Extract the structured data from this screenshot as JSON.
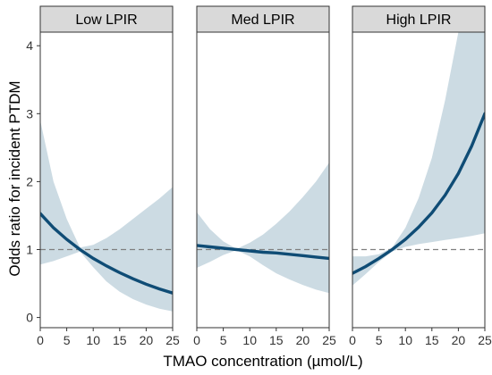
{
  "chart_data": {
    "type": "line",
    "xlabel": "TMAO concentration (µmol/L)",
    "ylabel": "Odds ratio for incident PTDM",
    "xlim": [
      0,
      25
    ],
    "ylim": [
      -0.15,
      4.2
    ],
    "x_ticks": [
      0,
      5,
      10,
      15,
      20,
      25
    ],
    "y_ticks": [
      0,
      1,
      2,
      3,
      4
    ],
    "reference_line": 1,
    "grid": false,
    "colors": {
      "line": "#0f4c75",
      "band": "#ccdbe3",
      "reference": "#7f7f7f",
      "strip": "#d9d9d9"
    },
    "panels": [
      {
        "title": "Low LPIR",
        "x": [
          0,
          2.5,
          5,
          7.5,
          10,
          12.5,
          15,
          17.5,
          20,
          22.5,
          25
        ],
        "odds": [
          1.53,
          1.32,
          1.15,
          1.0,
          0.87,
          0.76,
          0.66,
          0.57,
          0.49,
          0.42,
          0.36
        ],
        "lower": [
          0.78,
          0.83,
          0.9,
          0.97,
          0.74,
          0.53,
          0.38,
          0.27,
          0.19,
          0.13,
          0.09
        ],
        "upper": [
          2.9,
          2.0,
          1.45,
          1.03,
          1.07,
          1.17,
          1.3,
          1.45,
          1.6,
          1.75,
          1.92
        ]
      },
      {
        "title": "Med LPIR",
        "x": [
          0,
          2.5,
          5,
          7.5,
          10,
          12.5,
          15,
          17.5,
          20,
          22.5,
          25
        ],
        "odds": [
          1.06,
          1.04,
          1.02,
          1.0,
          0.98,
          0.96,
          0.95,
          0.93,
          0.91,
          0.89,
          0.87
        ],
        "lower": [
          0.73,
          0.82,
          0.92,
          0.99,
          0.9,
          0.77,
          0.65,
          0.56,
          0.48,
          0.41,
          0.36
        ],
        "upper": [
          1.55,
          1.3,
          1.12,
          1.01,
          1.1,
          1.22,
          1.38,
          1.56,
          1.77,
          2.0,
          2.28
        ]
      },
      {
        "title": "High LPIR",
        "x": [
          0,
          2.5,
          5,
          7.5,
          10,
          12.5,
          15,
          17.5,
          20,
          22.5,
          25
        ],
        "odds": [
          0.65,
          0.75,
          0.87,
          1.0,
          1.15,
          1.33,
          1.54,
          1.8,
          2.12,
          2.52,
          3.0
        ],
        "lower": [
          0.47,
          0.64,
          0.82,
          0.97,
          1.04,
          1.08,
          1.11,
          1.14,
          1.17,
          1.2,
          1.24
        ],
        "upper": [
          0.9,
          0.9,
          0.93,
          1.03,
          1.32,
          1.76,
          2.35,
          3.2,
          4.2,
          4.2,
          4.2
        ]
      }
    ]
  }
}
